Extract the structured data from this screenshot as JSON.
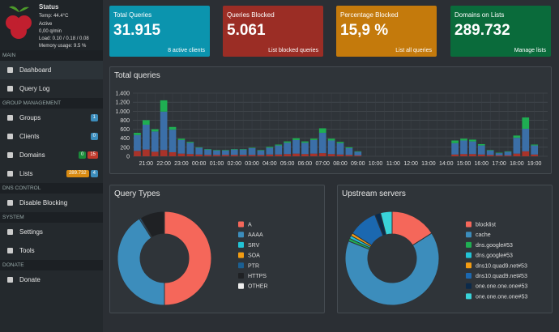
{
  "sidebar": {
    "status": {
      "title": "Status",
      "temp": "Temp: 44.4°C",
      "state": "Active",
      "rate": "0,00 q/min",
      "load": "Load: 0.10 / 0.18 / 0.08",
      "memory": "Memory usage: 9.5 %"
    },
    "sections": [
      {
        "title": "MAIN",
        "items": [
          {
            "label": "Dashboard",
            "badges": []
          },
          {
            "label": "Query Log",
            "badges": []
          }
        ]
      },
      {
        "title": "GROUP MANAGEMENT",
        "items": [
          {
            "label": "Groups",
            "badges": [
              "1"
            ]
          },
          {
            "label": "Clients",
            "badges": [
              "0"
            ]
          },
          {
            "label": "Domains",
            "badges": [
              "0",
              "15"
            ]
          },
          {
            "label": "Lists",
            "badges": [
              "289.732",
              "4"
            ]
          }
        ]
      },
      {
        "title": "DNS CONTROL",
        "items": [
          {
            "label": "Disable Blocking",
            "badges": []
          }
        ]
      },
      {
        "title": "SYSTEM",
        "items": [
          {
            "label": "Settings",
            "badges": []
          },
          {
            "label": "Tools",
            "badges": []
          }
        ]
      },
      {
        "title": "DONATE",
        "items": [
          {
            "label": "Donate",
            "badges": []
          }
        ]
      }
    ]
  },
  "stats": [
    {
      "title": "Total Queries",
      "value": "31.915",
      "link": "8 active clients",
      "color": "#0b94ae"
    },
    {
      "title": "Queries Blocked",
      "value": "5.061",
      "link": "List blocked queries",
      "color": "#9b2d25"
    },
    {
      "title": "Percentage Blocked",
      "value": "15,9 %",
      "link": "List all queries",
      "color": "#c47a0c"
    },
    {
      "title": "Domains on Lists",
      "value": "289.732",
      "link": "Manage lists",
      "color": "#0a6b3b"
    }
  ],
  "chart_data": [
    {
      "type": "bar",
      "title": "Total queries",
      "categories": [
        null,
        "21:00",
        null,
        "22:00",
        null,
        "23:00",
        null,
        "00:00",
        null,
        "01:00",
        null,
        "02:00",
        null,
        "03:00",
        null,
        "04:00",
        null,
        "05:00",
        null,
        "06:00",
        null,
        "07:00",
        null,
        "08:00",
        null,
        "09:00",
        null,
        "10:00",
        null,
        "11:00",
        null,
        "12:00",
        null,
        "13:00",
        null,
        "14:00",
        null,
        "15:00",
        null,
        "16:00",
        null,
        "17:00",
        null,
        "18:00",
        null,
        "19:00",
        null
      ],
      "series": [
        {
          "color": "#a8332a",
          "values": [
            120,
            150,
            100,
            140,
            90,
            60,
            50,
            40,
            30,
            30,
            30,
            30,
            30,
            30,
            30,
            40,
            40,
            50,
            60,
            50,
            60,
            70,
            50,
            40,
            30,
            20,
            0,
            0,
            0,
            0,
            0,
            0,
            0,
            0,
            0,
            0,
            40,
            50,
            50,
            40,
            30,
            20,
            20,
            60,
            110,
            40,
            0
          ]
        },
        {
          "color": "#3b6fa8",
          "values": [
            350,
            550,
            450,
            850,
            500,
            300,
            250,
            150,
            120,
            100,
            100,
            120,
            120,
            150,
            100,
            150,
            200,
            250,
            300,
            250,
            300,
            450,
            300,
            250,
            150,
            80,
            0,
            0,
            0,
            0,
            0,
            0,
            0,
            0,
            0,
            0,
            250,
            300,
            280,
            200,
            100,
            50,
            80,
            350,
            500,
            200,
            0
          ]
        },
        {
          "color": "#1fae52",
          "values": [
            50,
            100,
            50,
            250,
            60,
            30,
            20,
            10,
            10,
            10,
            10,
            10,
            10,
            10,
            10,
            20,
            20,
            30,
            40,
            30,
            30,
            100,
            40,
            30,
            20,
            10,
            0,
            0,
            0,
            0,
            0,
            0,
            0,
            0,
            0,
            0,
            60,
            40,
            40,
            30,
            10,
            10,
            10,
            50,
            250,
            20,
            0
          ]
        }
      ],
      "ylim": [
        0,
        1400
      ],
      "yticks": [
        0,
        200,
        400,
        600,
        800,
        {
          "value": 1000,
          "label": "1.000"
        },
        {
          "value": 1200,
          "label": "1.200"
        },
        {
          "value": 1400,
          "label": "1.400"
        }
      ],
      "grid": true,
      "stacked": true
    },
    {
      "type": "donut",
      "title": "Query Types",
      "categories": [
        "A",
        "AAAA",
        "SRV",
        "SOA",
        "PTR",
        "HTTPS",
        "OTHER"
      ],
      "values": [
        50,
        41,
        0,
        0,
        0.5,
        8.5,
        0
      ],
      "colors": [
        "#f5675a",
        "#3c8dbc",
        "#22c3d6",
        "#f39c12",
        "#1b5f92",
        "#1f2124",
        "#eeeeee"
      ]
    },
    {
      "type": "donut",
      "title": "Upstream servers",
      "categories": [
        "blocklist",
        "cache",
        "dns.google#53",
        "dns.google#53",
        "dns10.quad9.net#53",
        "dns10.quad9.net#53",
        "one.one.one.one#53",
        "one.one.one.one#53"
      ],
      "values": [
        16,
        65,
        1,
        1,
        1,
        10,
        2,
        4
      ],
      "colors": [
        "#f5675a",
        "#3c8dbc",
        "#1fae52",
        "#22c3d6",
        "#f39c12",
        "#1b68b0",
        "#0b2a4a",
        "#39d3d9"
      ]
    }
  ]
}
